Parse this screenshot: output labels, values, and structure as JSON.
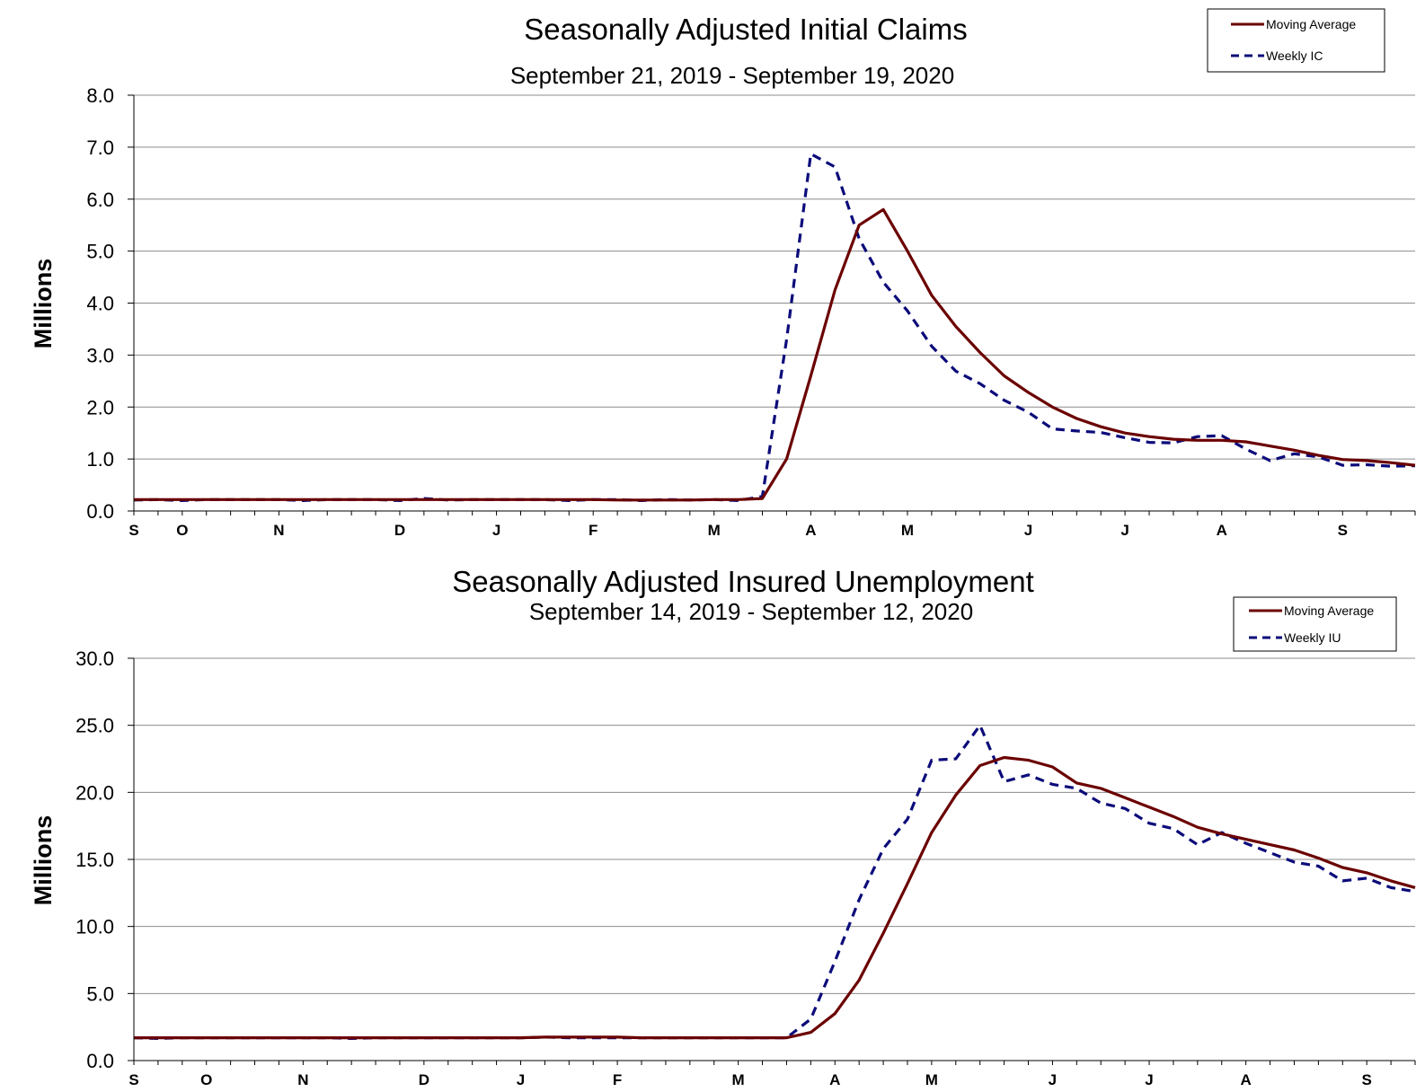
{
  "colors": {
    "moving_average": "#6b0000",
    "weekly": "#0b0b7a",
    "grid": "#8c8c8c",
    "axis": "#000000"
  },
  "chart_data": [
    {
      "type": "line",
      "title": "Seasonally Adjusted Initial Claims",
      "subtitle": "September 21, 2019 - September 19, 2020",
      "ylabel": "Millions",
      "ylim": [
        0,
        8
      ],
      "yticks": [
        "0.0",
        "1.0",
        "2.0",
        "3.0",
        "4.0",
        "5.0",
        "6.0",
        "7.0",
        "8.0"
      ],
      "month_labels": [
        {
          "label": "S",
          "week": 0
        },
        {
          "label": "O",
          "week": 2
        },
        {
          "label": "N",
          "week": 6
        },
        {
          "label": "D",
          "week": 11
        },
        {
          "label": "J",
          "week": 15
        },
        {
          "label": "F",
          "week": 19
        },
        {
          "label": "M",
          "week": 24
        },
        {
          "label": "A",
          "week": 28
        },
        {
          "label": "M",
          "week": 32
        },
        {
          "label": "J",
          "week": 37
        },
        {
          "label": "J",
          "week": 41
        },
        {
          "label": "A",
          "week": 45
        },
        {
          "label": "S",
          "week": 50
        }
      ],
      "grid": true,
      "legend_position": "top-right",
      "series": [
        {
          "name": "Moving Average",
          "style": "solid",
          "values": [
            0.22,
            0.22,
            0.22,
            0.22,
            0.22,
            0.22,
            0.22,
            0.22,
            0.22,
            0.22,
            0.22,
            0.22,
            0.22,
            0.22,
            0.22,
            0.22,
            0.22,
            0.22,
            0.22,
            0.22,
            0.21,
            0.21,
            0.21,
            0.21,
            0.22,
            0.22,
            0.24,
            1.0,
            2.6,
            4.25,
            5.5,
            5.8,
            5.0,
            4.15,
            3.55,
            3.05,
            2.6,
            2.28,
            2.0,
            1.78,
            1.62,
            1.5,
            1.43,
            1.38,
            1.36,
            1.36,
            1.33,
            1.25,
            1.17,
            1.07,
            0.99,
            0.97,
            0.93,
            0.88
          ]
        },
        {
          "name": "Weekly IC",
          "style": "dashed",
          "values": [
            0.21,
            0.22,
            0.2,
            0.22,
            0.22,
            0.22,
            0.22,
            0.2,
            0.22,
            0.22,
            0.22,
            0.2,
            0.24,
            0.21,
            0.22,
            0.22,
            0.22,
            0.22,
            0.2,
            0.22,
            0.22,
            0.2,
            0.22,
            0.21,
            0.22,
            0.2,
            0.28,
            3.3,
            6.87,
            6.62,
            5.24,
            4.4,
            3.85,
            3.17,
            2.69,
            2.45,
            2.13,
            1.9,
            1.58,
            1.54,
            1.51,
            1.41,
            1.32,
            1.31,
            1.43,
            1.45,
            1.19,
            0.97,
            1.1,
            1.04,
            0.88,
            0.89,
            0.86,
            0.87
          ]
        }
      ]
    },
    {
      "type": "line",
      "title": "Seasonally Adjusted Insured Unemployment",
      "subtitle": "September 14, 2019 - September 12, 2020",
      "ylabel": "Millions",
      "ylim": [
        0,
        30
      ],
      "yticks": [
        "0.0",
        "5.0",
        "10.0",
        "15.0",
        "20.0",
        "25.0",
        "30.0"
      ],
      "month_labels": [
        {
          "label": "S",
          "week": 0
        },
        {
          "label": "O",
          "week": 3
        },
        {
          "label": "N",
          "week": 7
        },
        {
          "label": "D",
          "week": 12
        },
        {
          "label": "J",
          "week": 16
        },
        {
          "label": "F",
          "week": 20
        },
        {
          "label": "M",
          "week": 25
        },
        {
          "label": "A",
          "week": 29
        },
        {
          "label": "M",
          "week": 33
        },
        {
          "label": "J",
          "week": 38
        },
        {
          "label": "J",
          "week": 42
        },
        {
          "label": "A",
          "week": 46
        },
        {
          "label": "S",
          "week": 51
        }
      ],
      "grid": true,
      "legend_position": "top-right",
      "series": [
        {
          "name": "Moving Average",
          "style": "solid",
          "values": [
            1.7,
            1.7,
            1.7,
            1.7,
            1.7,
            1.7,
            1.7,
            1.7,
            1.7,
            1.7,
            1.7,
            1.7,
            1.7,
            1.7,
            1.7,
            1.7,
            1.7,
            1.75,
            1.75,
            1.75,
            1.75,
            1.7,
            1.7,
            1.7,
            1.7,
            1.7,
            1.7,
            1.7,
            2.1,
            3.5,
            6.0,
            9.5,
            13.2,
            17.0,
            19.8,
            22.0,
            22.6,
            22.4,
            21.9,
            20.7,
            20.3,
            19.6,
            18.9,
            18.2,
            17.4,
            16.9,
            16.5,
            16.1,
            15.7,
            15.1,
            14.4,
            14.0,
            13.4,
            12.9
          ]
        },
        {
          "name": "Weekly IU",
          "style": "dashed",
          "values": [
            1.7,
            1.65,
            1.7,
            1.7,
            1.7,
            1.7,
            1.7,
            1.7,
            1.7,
            1.65,
            1.7,
            1.7,
            1.7,
            1.7,
            1.7,
            1.7,
            1.7,
            1.75,
            1.7,
            1.7,
            1.7,
            1.7,
            1.7,
            1.7,
            1.7,
            1.7,
            1.7,
            1.7,
            3.1,
            7.4,
            12.0,
            15.8,
            18.0,
            22.4,
            22.5,
            25.0,
            20.8,
            21.3,
            20.6,
            20.3,
            19.2,
            18.8,
            17.7,
            17.3,
            16.1,
            17.0,
            16.2,
            15.5,
            14.8,
            14.5,
            13.4,
            13.6,
            12.9,
            12.6
          ]
        }
      ]
    }
  ]
}
